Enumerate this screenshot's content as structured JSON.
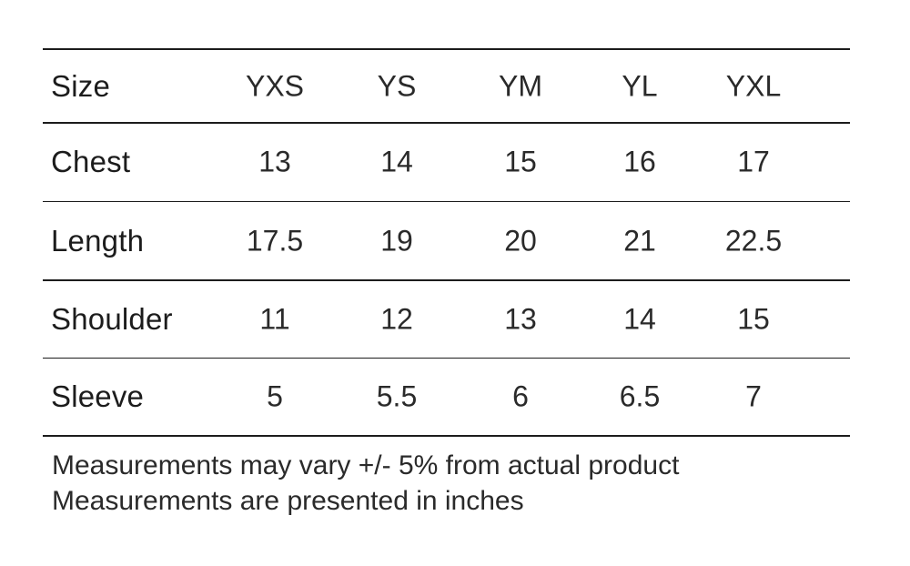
{
  "table": {
    "columns": [
      "YXS",
      "YS",
      "YM",
      "YL",
      "YXL"
    ],
    "header_label": "Size",
    "rows": [
      {
        "label": "Chest",
        "values": [
          "13",
          "14",
          "15",
          "16",
          "17"
        ]
      },
      {
        "label": "Length",
        "values": [
          "17.5",
          "19",
          "20",
          "21",
          "22.5"
        ]
      },
      {
        "label": "Shoulder",
        "values": [
          "11",
          "12",
          "13",
          "14",
          "15"
        ]
      },
      {
        "label": "Sleeve",
        "values": [
          "5",
          "5.5",
          "6",
          "6.5",
          "7"
        ]
      }
    ]
  },
  "notes": [
    "Measurements may vary +/- 5% from actual product",
    "Measurements are presented in inches"
  ],
  "colors": {
    "text": "#1c1c1c",
    "rule": "#1c1c1c",
    "background": "#ffffff"
  }
}
